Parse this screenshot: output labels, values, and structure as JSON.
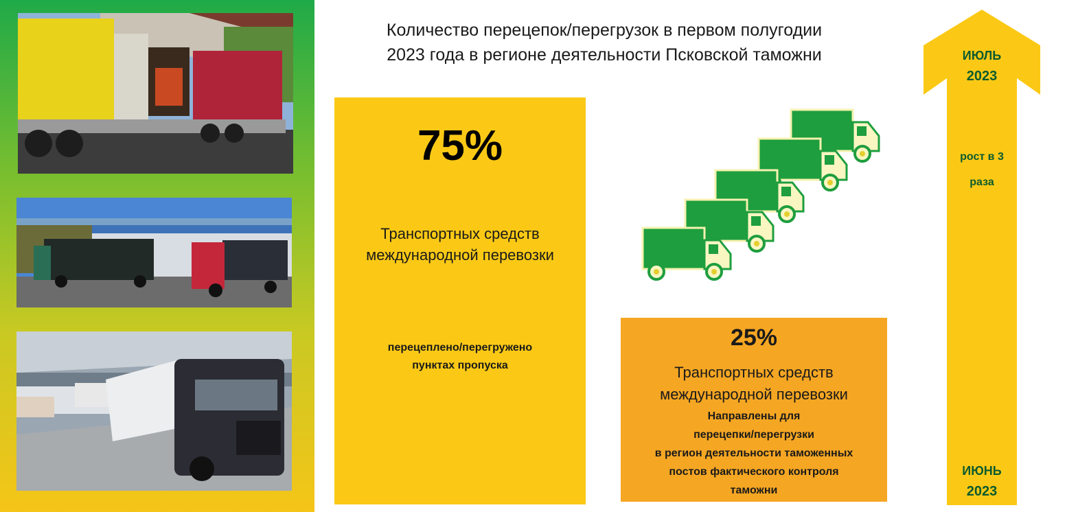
{
  "title": {
    "line1": "Количество перецепок/перегрузок  в первом полугодии",
    "line2": "2023 года в регионе деятельности Псковской таможни"
  },
  "block_main": {
    "percent": "75%",
    "description_line1": "Транспортных средств",
    "description_line2": "международной перевозки",
    "sub_line1": "перецеплено/перегружено",
    "sub_line2": "пунктах пропуска"
  },
  "block_secondary": {
    "percent": "25%",
    "description_line1": "Транспортных средств",
    "description_line2": "международной перевозки",
    "sub_line1": "Направлены для",
    "sub_line2": "перецепки/перегрузки",
    "sub_line3": "в регион деятельности таможенных",
    "sub_line4": "постов фактического контроля",
    "sub_line5": "таможни"
  },
  "growth_arrow": {
    "top_month": "ИЮЛЬ",
    "top_year": "2023",
    "growth_line1": "рост в 3",
    "growth_line2": "раза",
    "bottom_month": "ИЮНЬ",
    "bottom_year": "2023"
  },
  "photos": [
    {
      "name": "photo-truck-loading-dock"
    },
    {
      "name": "photo-trucks-at-warehouse"
    },
    {
      "name": "photo-truck-inside-terminal"
    }
  ],
  "icons": [
    "truck-icon"
  ],
  "colors": {
    "accent_yellow": "#fbc915",
    "accent_orange": "#f5a623",
    "truck_green": "#1e9e3e",
    "text_dark_green": "#0c5a2e"
  }
}
